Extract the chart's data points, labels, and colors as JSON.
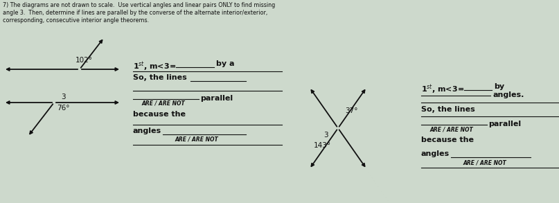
{
  "bg_color": "#cdd9cc",
  "text_color": "#111111",
  "title_lines": [
    "7) The diagrams are not drawn to scale.  Use vertical angles and linear pairs ONLY to find missing",
    "angle 3.  Then, determine if lines are parallel by the converse of the alternate interior/exterior,",
    "corresponding, consecutive interior angle theorems."
  ],
  "diagram1": {
    "angle_top": "102°",
    "angle_bottom": "76°",
    "label3": "3"
  },
  "diagram2": {
    "angle_top": "37°",
    "angle_bottom": "143°",
    "label3": "3"
  }
}
